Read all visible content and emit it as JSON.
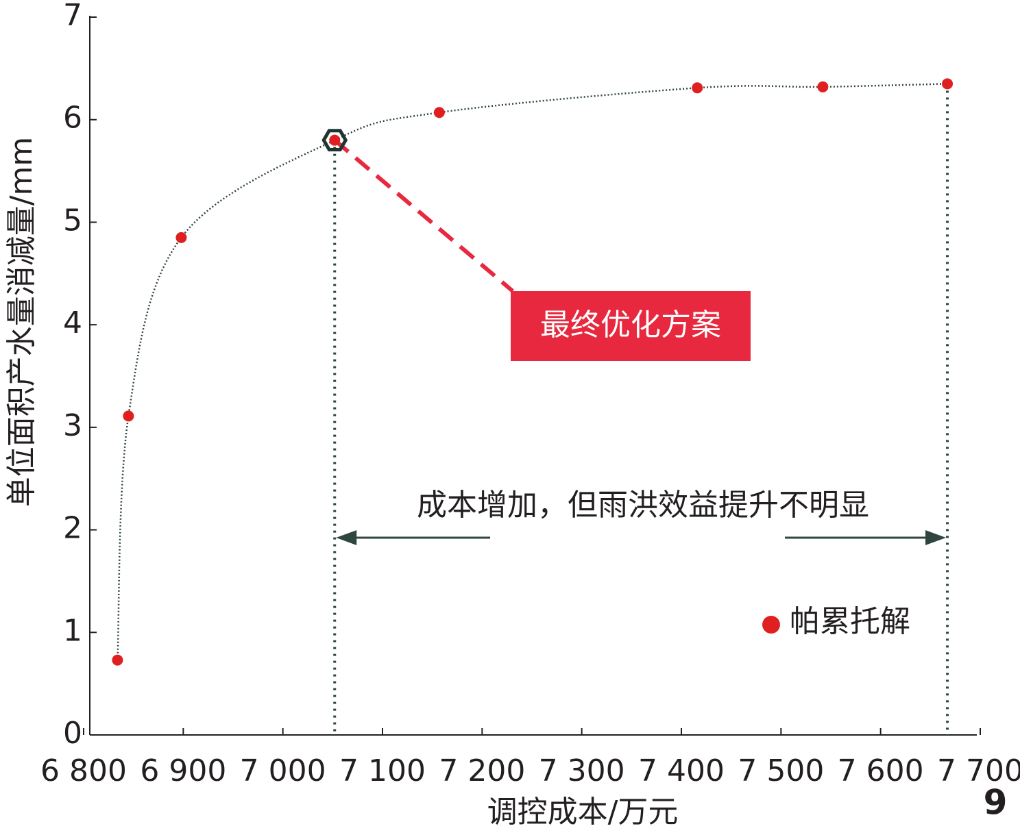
{
  "chart_data": {
    "type": "scatter",
    "x_label": "调控成本/万元",
    "y_label": "单位面积产水量消减量/mm",
    "xlim": [
      6800,
      7700
    ],
    "ylim": [
      0,
      7
    ],
    "xticks": [
      {
        "value": 6800,
        "label": "6 800"
      },
      {
        "value": 6900,
        "label": "6 900"
      },
      {
        "value": 7000,
        "label": "7 000"
      },
      {
        "value": 7100,
        "label": "7 100"
      },
      {
        "value": 7200,
        "label": "7 200"
      },
      {
        "value": 7300,
        "label": "7 300"
      },
      {
        "value": 7400,
        "label": "7 400"
      },
      {
        "value": 7500,
        "label": "7 500"
      },
      {
        "value": 7600,
        "label": "7 600"
      },
      {
        "value": 7700,
        "label": "7 700"
      }
    ],
    "yticks": [
      0,
      1,
      2,
      3,
      4,
      5,
      6,
      7
    ],
    "series": [
      {
        "name": "帕累托解",
        "color": "#e02020",
        "x": [
          6834,
          6845,
          6898,
          7052,
          7157,
          7416,
          7542,
          7667
        ],
        "values": [
          0.73,
          3.11,
          4.85,
          5.8,
          6.07,
          6.31,
          6.32,
          6.35
        ]
      }
    ],
    "annotations": {
      "optimal": "最终优化方案",
      "range": "成本增加，但雨洪效益提升不明显"
    },
    "figure_label": "9"
  }
}
